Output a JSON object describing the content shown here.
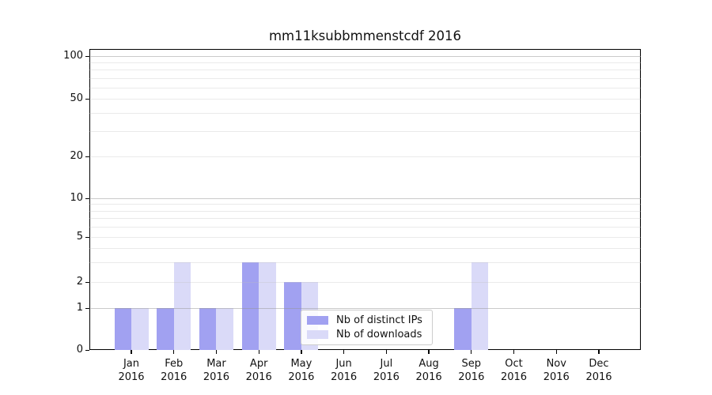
{
  "figure": {
    "title": "mm11ksubbmmenstcdf 2016"
  },
  "chart_data": {
    "type": "bar",
    "title": "mm11ksubbmmenstcdf 2016",
    "categories": [
      "Jan 2016",
      "Feb 2016",
      "Mar 2016",
      "Apr 2016",
      "May 2016",
      "Jun 2016",
      "Jul 2016",
      "Aug 2016",
      "Sep 2016",
      "Oct 2016",
      "Nov 2016",
      "Dec 2016"
    ],
    "x_tick_months": [
      "Jan",
      "Feb",
      "Mar",
      "Apr",
      "May",
      "Jun",
      "Jul",
      "Aug",
      "Sep",
      "Oct",
      "Nov",
      "Dec"
    ],
    "x_tick_year": "2016",
    "series": [
      {
        "name": "Nb of distinct IPs",
        "color": "#a1a1f1",
        "values": [
          1,
          1,
          1,
          3,
          2,
          0,
          0,
          0,
          1,
          0,
          0,
          0
        ]
      },
      {
        "name": "Nb of downloads",
        "color": "#dadaf8",
        "values": [
          1,
          3,
          1,
          3,
          2,
          0,
          0,
          0,
          3,
          0,
          0,
          0
        ]
      }
    ],
    "xlabel": "",
    "ylabel": "",
    "yscale": "symlog",
    "ylim": [
      0,
      112
    ],
    "y_ticks": [
      0,
      1,
      2,
      5,
      10,
      20,
      50,
      100
    ],
    "grid": {
      "orientation": "horizontal",
      "major_values": [
        1,
        10,
        100
      ],
      "minor_values": [
        2,
        3,
        4,
        5,
        6,
        7,
        8,
        9,
        20,
        30,
        40,
        50,
        60,
        70,
        80,
        90
      ],
      "major_color": "#cfcfcf",
      "minor_color": "#ebebeb"
    },
    "legend": {
      "position": "lower center",
      "entries": [
        "Nb of distinct IPs",
        "Nb of downloads"
      ]
    },
    "colors": {
      "distinct_ips": "#a1a1f1",
      "downloads": "#dadaf8",
      "axis": "#000000",
      "background": "#ffffff"
    }
  }
}
